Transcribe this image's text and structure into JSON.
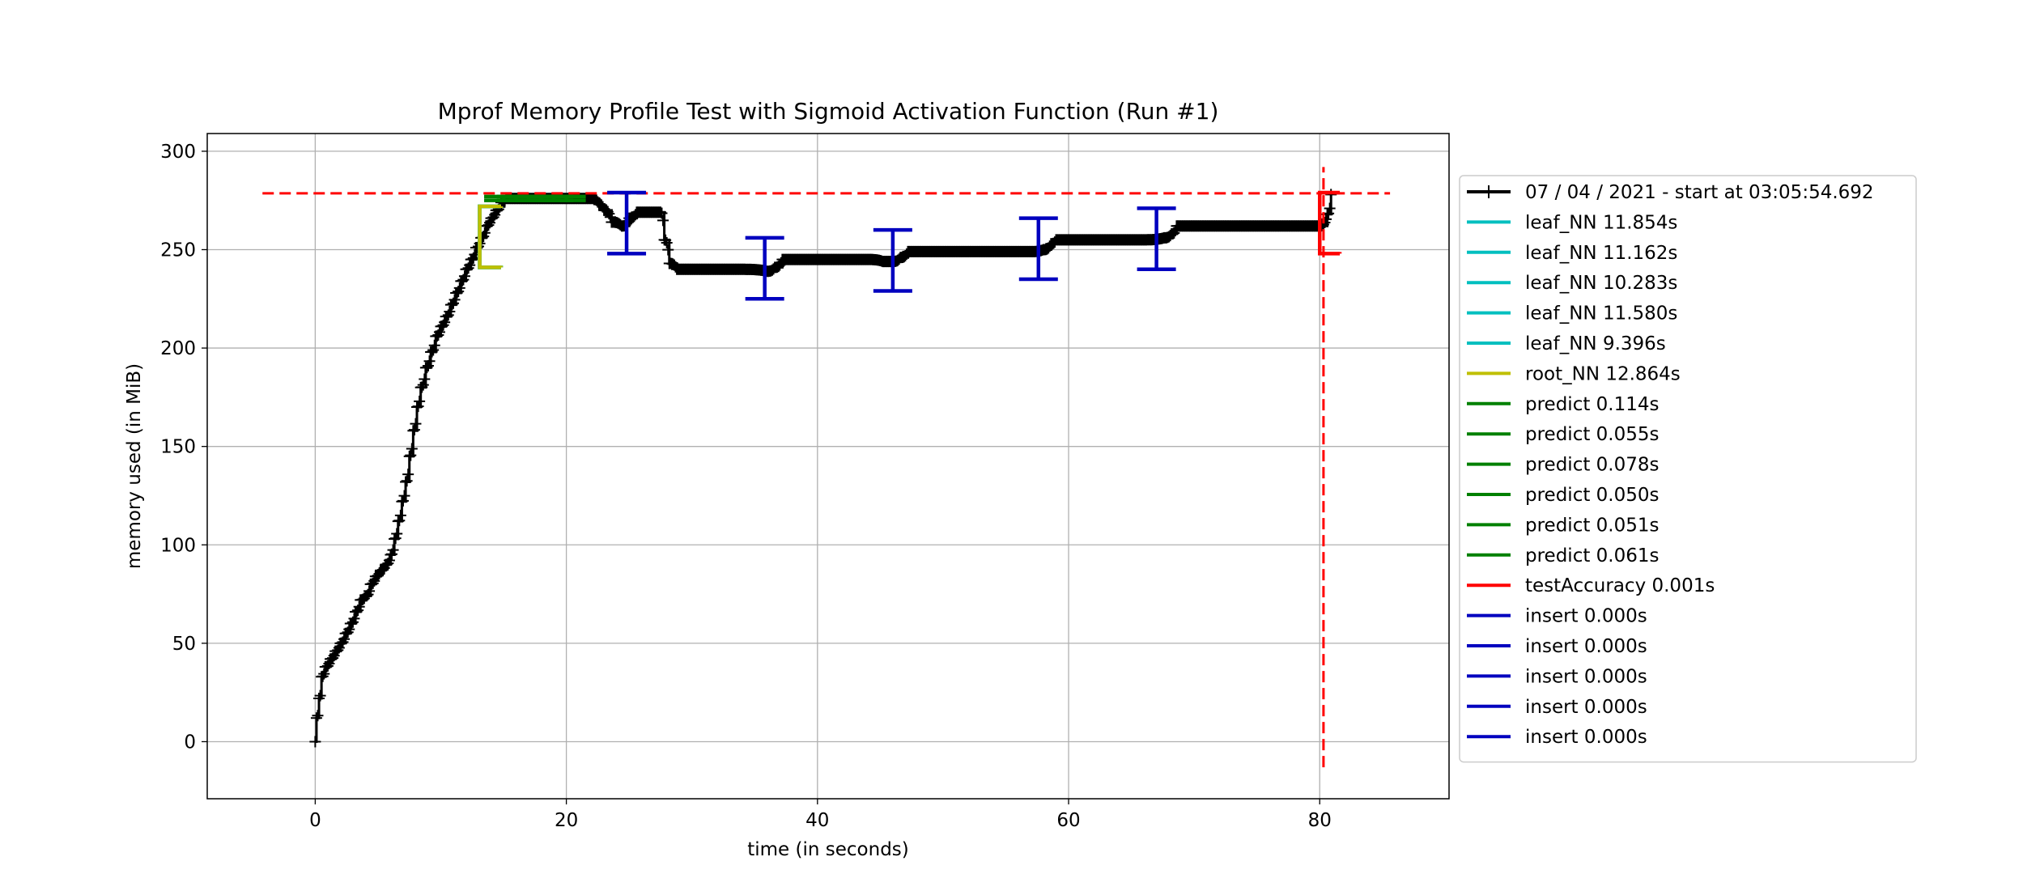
{
  "chart_data": {
    "type": "line",
    "title": "Mprof Memory Profile Test with Sigmoid Activation Function (Run #1)",
    "xlabel": "time (in seconds)",
    "ylabel": "memory used (in MiB)",
    "xlim": [
      -8.6,
      90.3
    ],
    "ylim": [
      -29,
      309
    ],
    "xticks": [
      0,
      20,
      40,
      60,
      80
    ],
    "yticks": [
      0,
      50,
      100,
      150,
      200,
      250,
      300
    ],
    "grid": true,
    "legend_position": "right, outside plot",
    "memory_series": {
      "name": "07 / 04 / 2021 - start at 03:05:54.692",
      "color": "#000000",
      "marker": "plus",
      "points": [
        [
          0.0,
          0
        ],
        [
          0.1,
          12
        ],
        [
          0.3,
          22
        ],
        [
          0.5,
          33
        ],
        [
          0.8,
          38
        ],
        [
          1.2,
          42
        ],
        [
          1.6,
          46
        ],
        [
          2.0,
          50
        ],
        [
          2.4,
          55
        ],
        [
          2.8,
          60
        ],
        [
          3.2,
          66
        ],
        [
          3.6,
          72
        ],
        [
          4.0,
          74
        ],
        [
          4.4,
          80
        ],
        [
          4.8,
          84
        ],
        [
          5.2,
          87
        ],
        [
          5.6,
          90
        ],
        [
          6.0,
          95
        ],
        [
          6.3,
          103
        ],
        [
          6.6,
          112
        ],
        [
          6.9,
          122
        ],
        [
          7.2,
          132
        ],
        [
          7.5,
          145
        ],
        [
          7.8,
          158
        ],
        [
          8.1,
          170
        ],
        [
          8.4,
          180
        ],
        [
          8.8,
          190
        ],
        [
          9.2,
          198
        ],
        [
          9.6,
          206
        ],
        [
          10.0,
          211
        ],
        [
          10.4,
          216
        ],
        [
          10.8,
          222
        ],
        [
          11.2,
          228
        ],
        [
          11.6,
          234
        ],
        [
          12.0,
          240
        ],
        [
          12.4,
          245
        ],
        [
          12.8,
          251
        ],
        [
          13.2,
          256
        ],
        [
          13.6,
          262
        ],
        [
          14.0,
          266
        ],
        [
          14.4,
          270
        ],
        [
          14.8,
          274
        ],
        [
          15.2,
          276
        ],
        [
          16.0,
          276
        ],
        [
          18.0,
          276
        ],
        [
          20.0,
          276
        ],
        [
          22.0,
          276
        ],
        [
          22.6,
          273
        ],
        [
          23.0,
          270
        ],
        [
          23.6,
          264
        ],
        [
          24.4,
          262
        ],
        [
          25.0,
          266
        ],
        [
          25.6,
          269
        ],
        [
          26.5,
          269
        ],
        [
          27.5,
          269
        ],
        [
          27.8,
          255
        ],
        [
          28.2,
          243
        ],
        [
          28.8,
          240
        ],
        [
          30.0,
          240
        ],
        [
          32.0,
          240
        ],
        [
          34.0,
          240
        ],
        [
          36.0,
          239
        ],
        [
          36.6,
          241
        ],
        [
          37.2,
          245
        ],
        [
          40.0,
          245
        ],
        [
          42.0,
          245
        ],
        [
          44.0,
          245
        ],
        [
          45.2,
          244
        ],
        [
          46.0,
          244
        ],
        [
          46.6,
          246
        ],
        [
          47.2,
          249
        ],
        [
          50.0,
          249
        ],
        [
          54.0,
          249
        ],
        [
          57.0,
          249
        ],
        [
          58.0,
          250
        ],
        [
          58.6,
          253
        ],
        [
          59.0,
          255
        ],
        [
          62.0,
          255
        ],
        [
          66.0,
          255
        ],
        [
          67.6,
          256
        ],
        [
          68.2,
          258
        ],
        [
          68.6,
          262
        ],
        [
          72.0,
          262
        ],
        [
          76.0,
          262
        ],
        [
          80.0,
          262
        ],
        [
          80.6,
          268
        ],
        [
          80.9,
          278
        ]
      ]
    },
    "max_lines": {
      "color": "#ff0000",
      "style": "dashed",
      "hline_y": 278.6,
      "hline_x": [
        -4.2,
        85.6
      ],
      "vline_x": 80.3,
      "vline_y": [
        -13,
        292
      ]
    },
    "function_brackets": [
      {
        "name": "leaf_NN 11.854s",
        "color": "#00bfbf",
        "x": [
          13.1,
          14.8
        ],
        "y": [
          241,
          272
        ]
      },
      {
        "name": "leaf_NN 11.162s",
        "color": "#00bfbf",
        "x": [
          13.1,
          14.8
        ],
        "y": [
          241,
          272
        ]
      },
      {
        "name": "leaf_NN 10.283s",
        "color": "#00bfbf",
        "x": [
          13.1,
          14.8
        ],
        "y": [
          241,
          272
        ]
      },
      {
        "name": "leaf_NN 11.580s",
        "color": "#00bfbf",
        "x": [
          13.1,
          14.8
        ],
        "y": [
          241,
          272
        ]
      },
      {
        "name": "leaf_NN 9.396s",
        "color": "#00bfbf",
        "x": [
          13.1,
          14.8
        ],
        "y": [
          241,
          272
        ]
      },
      {
        "name": "root_NN 12.864s",
        "color": "#bfbf00",
        "x": [
          13.1,
          14.8
        ],
        "y": [
          241,
          272
        ]
      },
      {
        "name": "predict 0.114s",
        "color": "#008000",
        "x": [
          15.0,
          15.1
        ],
        "y": [
          275,
          277
        ]
      },
      {
        "name": "predict 0.055s",
        "color": "#008000",
        "x": [
          16.0,
          16.05
        ],
        "y": [
          275,
          277
        ]
      },
      {
        "name": "predict 0.078s",
        "color": "#008000",
        "x": [
          17.0,
          17.07
        ],
        "y": [
          275,
          277
        ]
      },
      {
        "name": "predict 0.050s",
        "color": "#008000",
        "x": [
          18.0,
          18.05
        ],
        "y": [
          275,
          277
        ]
      },
      {
        "name": "predict 0.051s",
        "color": "#008000",
        "x": [
          19.0,
          19.05
        ],
        "y": [
          275,
          277
        ]
      },
      {
        "name": "predict 0.061s",
        "color": "#008000",
        "x": [
          20.0,
          20.06
        ],
        "y": [
          275,
          277
        ]
      },
      {
        "name": "testAccuracy 0.001s",
        "color": "#ff0000",
        "x": [
          80.0,
          81.6
        ],
        "y": [
          248,
          279
        ]
      },
      {
        "name": "insert 0.000s",
        "color": "#0000bf",
        "x": [
          24.8,
          24.8
        ],
        "y": [
          248,
          279
        ]
      },
      {
        "name": "insert 0.000s",
        "color": "#0000bf",
        "x": [
          35.8,
          35.8
        ],
        "y": [
          225,
          256
        ]
      },
      {
        "name": "insert 0.000s",
        "color": "#0000bf",
        "x": [
          46.0,
          46.0
        ],
        "y": [
          229,
          260
        ]
      },
      {
        "name": "insert 0.000s",
        "color": "#0000bf",
        "x": [
          57.6,
          57.6
        ],
        "y": [
          235,
          266
        ]
      },
      {
        "name": "insert 0.000s",
        "color": "#0000bf",
        "x": [
          67.0,
          67.0
        ],
        "y": [
          240,
          271
        ]
      }
    ]
  }
}
